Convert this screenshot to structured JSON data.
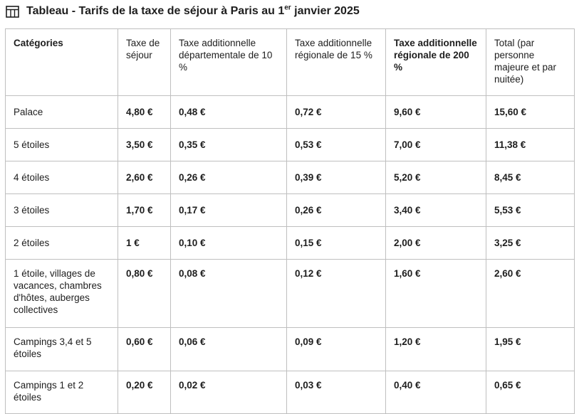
{
  "title": {
    "main": "Tableau - Tarifs de la taxe de séjour à Paris au 1",
    "sup": "er",
    "tail": " janvier 2025",
    "icon": "table-icon"
  },
  "table": {
    "headers": [
      "Catégories",
      "Taxe de séjour",
      "Taxe additionnelle départementale de 10 %",
      "Taxe additionnelle régionale de 15 %",
      "Taxe additionnelle régionale de 200 %",
      "Total (par personne majeure et par nuitée)"
    ],
    "rows": [
      [
        "Palace",
        "4,80 €",
        "0,48 €",
        "0,72 €",
        "9,60 €",
        "15,60 €"
      ],
      [
        "5 étoiles",
        "3,50 €",
        "0,35 €",
        "0,53 €",
        "7,00 €",
        "11,38 €"
      ],
      [
        "4 étoiles",
        "2,60 €",
        "0,26 €",
        "0,39 €",
        "5,20 €",
        "8,45 €"
      ],
      [
        "3 étoiles",
        "1,70 €",
        "0,17 €",
        "0,26 €",
        "3,40 €",
        "5,53 €"
      ],
      [
        "2 étoiles",
        "1 €",
        "0,10 €",
        "0,15 €",
        "2,00 €",
        "3,25 €"
      ],
      [
        "1 étoile, villages de vacances, chambres d'hôtes, auberges collectives",
        "0,80 €",
        "0,08 €",
        "0,12 €",
        "1,60 €",
        "2,60 €"
      ],
      [
        "Campings 3,4 et 5 étoiles",
        "0,60 €",
        "0,06 €",
        "0,09 €",
        "1,20 €",
        "1,95 €"
      ],
      [
        "Campings 1 et 2 étoiles",
        "0,20 €",
        "0,02 €",
        "0,03 €",
        "0,40 €",
        "0,65 €"
      ]
    ]
  }
}
